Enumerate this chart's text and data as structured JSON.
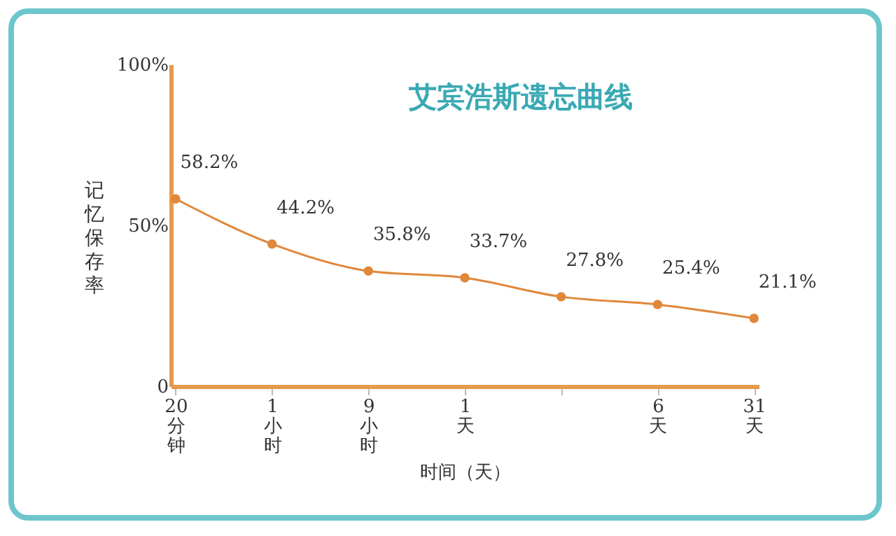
{
  "chart_data": {
    "type": "line",
    "title": "艾宾浩斯遗忘曲线",
    "xlabel": "时间（天）",
    "ylabel": "记忆保存率",
    "categories": [
      "20分钟",
      "1小时",
      "9小时",
      "1天",
      null,
      "6天",
      "31天"
    ],
    "series": [
      {
        "color": "#e0873a",
        "values": [
          58.2,
          44.2,
          35.8,
          33.7,
          27.8,
          25.4,
          21.1
        ],
        "value_labels": [
          "58.2%",
          "44.2%",
          "35.8%",
          "33.7%",
          "27.8%",
          "25.4%",
          "21.1%"
        ]
      }
    ],
    "ylim": [
      0,
      100
    ],
    "yticks": [
      0,
      {
        "value": 50,
        "label": "50%"
      },
      {
        "value": 100,
        "label": "100%"
      }
    ],
    "grid": false,
    "legend": false,
    "marker": "circle",
    "line_style": "solid"
  }
}
